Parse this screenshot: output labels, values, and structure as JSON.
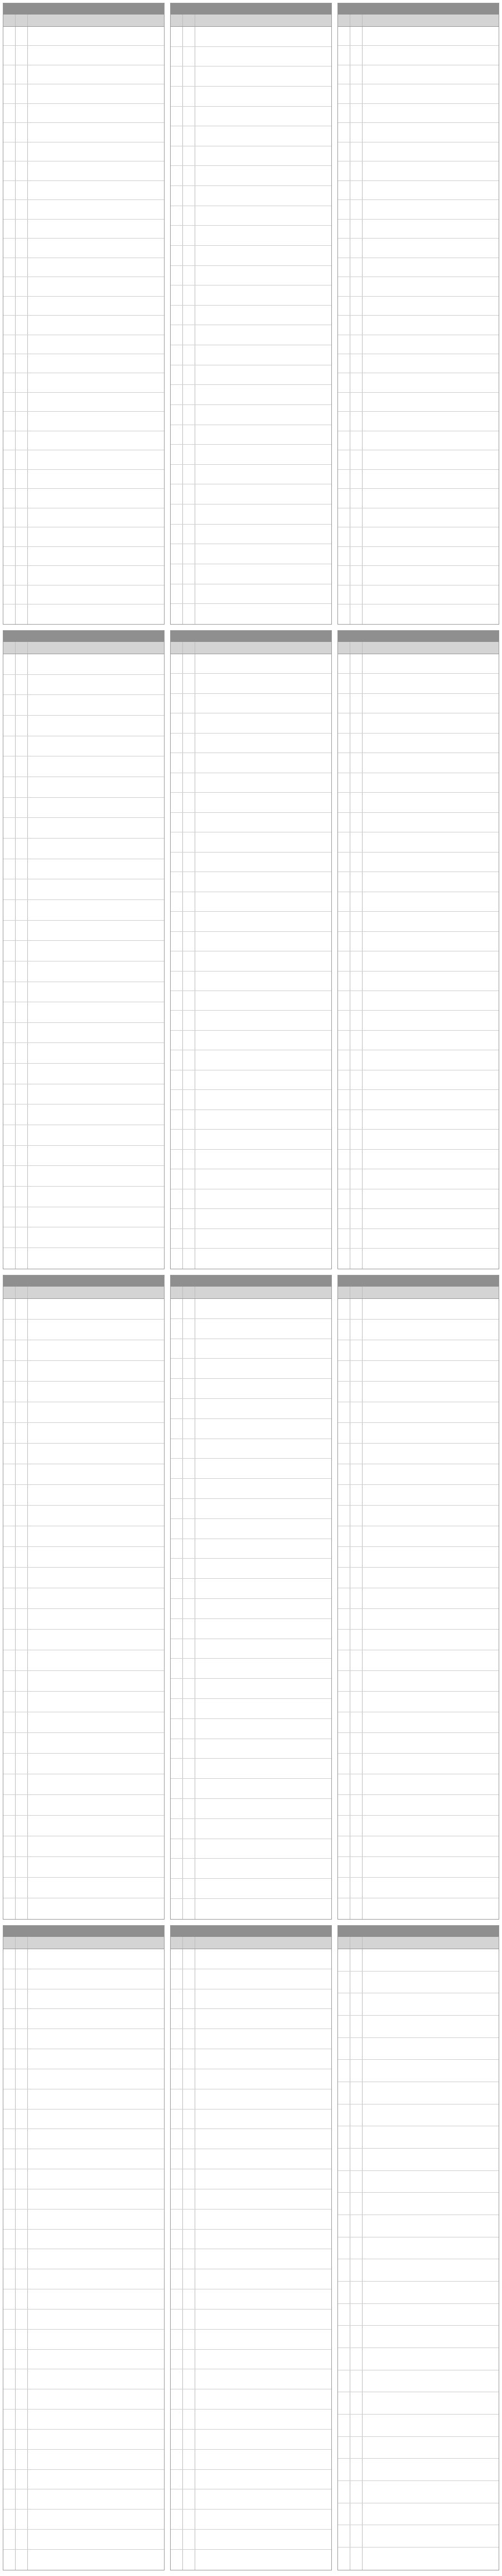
{
  "calendar": {
    "colors": {
      "header_bg": "#8f8f8f",
      "subheader_bg": "#d4d4d4",
      "holiday": "#e02020"
    },
    "column_headers": {
      "day": "",
      "weekday": "",
      "event": ""
    },
    "months": [
      {
        "title": "",
        "days": []
      },
      {
        "title": "",
        "days": []
      },
      {
        "title": "",
        "days": []
      },
      {
        "title": "",
        "days": []
      },
      {
        "title": "",
        "days": []
      },
      {
        "title": "",
        "days": []
      },
      {
        "title": "",
        "days": []
      },
      {
        "title": "",
        "days": []
      },
      {
        "title": "",
        "days": []
      },
      {
        "title": "",
        "days": []
      },
      {
        "title": "",
        "days": []
      },
      {
        "title": "",
        "days": []
      }
    ]
  }
}
